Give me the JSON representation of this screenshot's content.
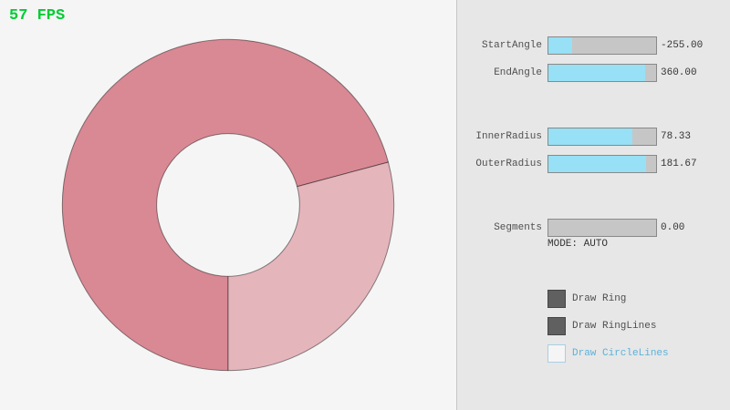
{
  "fps": "57 FPS",
  "colors": {
    "fps_green": "#00cc33",
    "canvas_bg": "#f5f5f5",
    "panel_bg": "#e7e7e7",
    "divider": "#c6c6c6",
    "ring_dark": "#d98994",
    "ring_light": "#e5b5bc",
    "ring_outline": "rgba(0,0,0,0.45)",
    "slider_fill": "#97e0f5",
    "slider_track": "#c6c6c6",
    "control_border": "#898989",
    "label_text": "#4f4f4f",
    "value_text": "#333333",
    "checkbox_checked": "#606060",
    "checkbox_checked_border": "#454545",
    "checkbox_unchecked_bg": "#f5f5f5",
    "checkbox_unchecked_border": "#a8cfe2",
    "unchecked_label": "#5bb2d9"
  },
  "panel": {
    "sliders": [
      {
        "label": "StartAngle",
        "value": "-255.00",
        "fill_pct": 21.7
      },
      {
        "label": "EndAngle",
        "value": "360.00",
        "fill_pct": 90.0
      },
      {
        "label": "InnerRadius",
        "value": "78.33",
        "fill_pct": 78.3
      },
      {
        "label": "OuterRadius",
        "value": "181.67",
        "fill_pct": 90.8
      },
      {
        "label": "Segments",
        "value": "0.00",
        "fill_pct": 0
      }
    ],
    "mode_text": "MODE: AUTO",
    "checkboxes": [
      {
        "label": "Draw Ring",
        "checked": true
      },
      {
        "label": "Draw RingLines",
        "checked": true
      },
      {
        "label": "Draw CircleLines",
        "checked": false
      }
    ]
  }
}
